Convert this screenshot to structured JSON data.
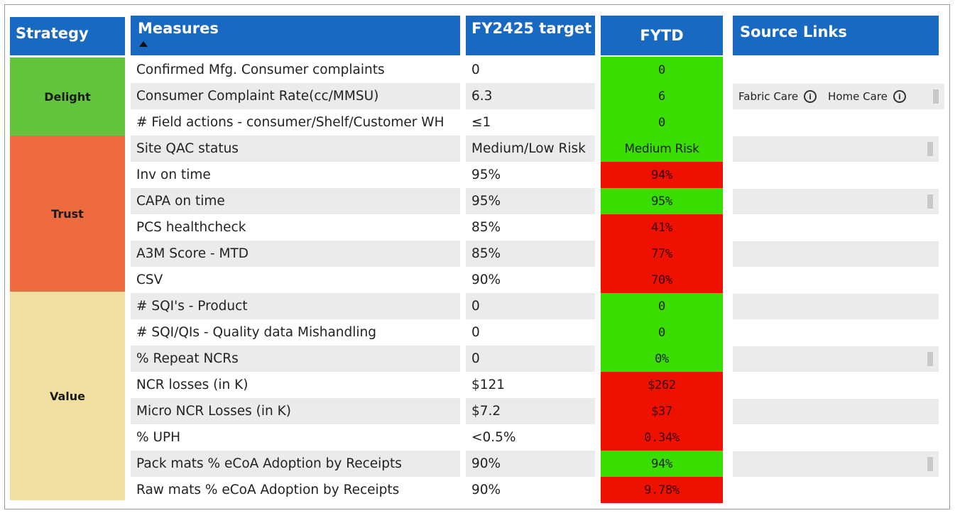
{
  "headers": {
    "strategy": "Strategy",
    "measures": "Measures",
    "target": "FY2425 target",
    "fytd": "FYTD",
    "source_links": "Source Links"
  },
  "strategies": [
    {
      "label": "Delight",
      "color": "#62c43c"
    },
    {
      "label": "Trust",
      "color": "#ee6b40"
    },
    {
      "label": "Value",
      "color": "#f0dfa0"
    }
  ],
  "rows": [
    {
      "measure": "Confirmed Mfg. Consumer complaints",
      "target": "0",
      "fytd": "0",
      "status": "green"
    },
    {
      "measure": "Consumer Complaint Rate(cc/MMSU)",
      "target": "6.3",
      "fytd": "6",
      "status": "green"
    },
    {
      "measure": "# Field actions - consumer/Shelf/Customer WH",
      "target": "≤1",
      "fytd": "0",
      "status": "green"
    },
    {
      "measure": "Site QAC status",
      "target": "Medium/Low Risk",
      "fytd": "Medium Risk",
      "status": "green"
    },
    {
      "measure": "Inv on time",
      "target": "95%",
      "fytd": "94%",
      "status": "red"
    },
    {
      "measure": "CAPA on time",
      "target": "95%",
      "fytd": "95%",
      "status": "green"
    },
    {
      "measure": "PCS healthcheck",
      "target": "85%",
      "fytd": "41%",
      "status": "red"
    },
    {
      "measure": "A3M Score - MTD",
      "target": "85%",
      "fytd": "77%",
      "status": "red"
    },
    {
      "measure": "CSV",
      "target": "90%",
      "fytd": "70%",
      "status": "red"
    },
    {
      "measure": "# SQI's - Product",
      "target": "0",
      "fytd": "0",
      "status": "green"
    },
    {
      "measure": "# SQI/QIs - Quality data Mishandling",
      "target": "0",
      "fytd": "0",
      "status": "green"
    },
    {
      "measure": "% Repeat NCRs",
      "target": "0",
      "fytd": "0%",
      "status": "green"
    },
    {
      "measure": "NCR losses (in K)",
      "target": "$121",
      "fytd": "$262",
      "status": "red"
    },
    {
      "measure": "Micro NCR Losses (in K)",
      "target": "$7.2",
      "fytd": "$37",
      "status": "red"
    },
    {
      "measure": "% UPH",
      "target": "<0.5%",
      "fytd": "0.34%",
      "status": "red"
    },
    {
      "measure": "Pack mats % eCoA Adoption by Receipts",
      "target": "90%",
      "fytd": "94%",
      "status": "green"
    },
    {
      "measure": "Raw mats % eCoA Adoption by Receipts",
      "target": "90%",
      "fytd": "9.78%",
      "status": "red"
    }
  ],
  "source_links": {
    "fabric_care": "Fabric Care",
    "home_care": "Home Care",
    "info_icon": "info-icon"
  },
  "colors": {
    "header_blue": "#1769c1",
    "fytd_green": "#39dd00",
    "fytd_red": "#ee1100"
  }
}
